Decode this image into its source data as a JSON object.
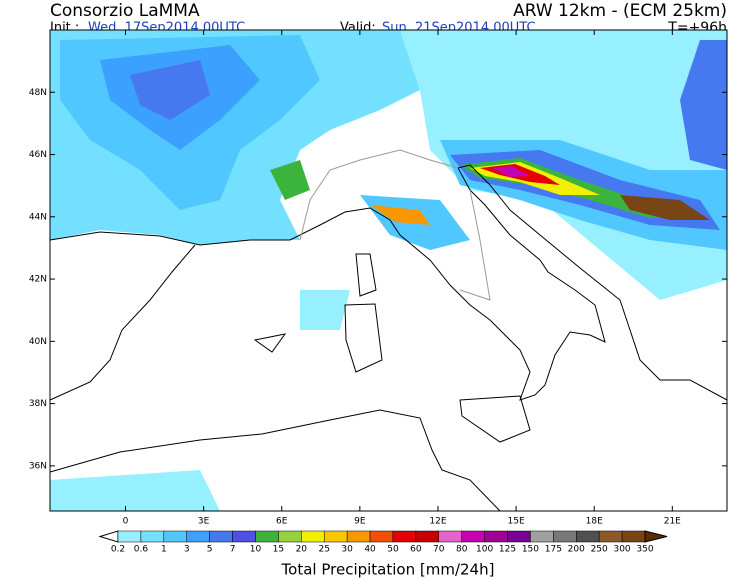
{
  "header": {
    "title": "Consorzio LaMMA",
    "init_label": "Init.:",
    "init_value": "Wed, 17Sep2014 00UTC",
    "valid_label": "Valid:",
    "valid_value": "Sun, 21Sep2014 00UTC",
    "model": "ARW 12km - (ECM 25km)",
    "lead_time": "T=+96h"
  },
  "map": {
    "lon_range": [
      -2.9,
      23.1
    ],
    "lat_range": [
      34.55,
      50
    ],
    "lon_ticks": [
      0,
      {
        "value": 3,
        "label": "3E"
      },
      {
        "value": 6,
        "label": "6E"
      },
      {
        "value": 9,
        "label": "9E"
      },
      {
        "value": 12,
        "label": "12E"
      },
      {
        "value": 15,
        "label": "15E"
      },
      {
        "value": 18,
        "label": "18E"
      },
      {
        "value": 21,
        "label": "21E"
      }
    ],
    "lat_ticks": [
      {
        "value": 36,
        "label": "36N"
      },
      {
        "value": 38,
        "label": "38N"
      },
      {
        "value": 40,
        "label": "40N"
      },
      {
        "value": 42,
        "label": "42N"
      },
      {
        "value": 44,
        "label": "44N"
      },
      {
        "value": 46,
        "label": "46N"
      },
      {
        "value": 48,
        "label": "48N"
      }
    ]
  },
  "colorbar": {
    "levels": [
      0.2,
      0.6,
      1,
      3,
      5,
      7,
      10,
      15,
      20,
      25,
      30,
      40,
      50,
      60,
      70,
      80,
      100,
      125,
      150,
      175,
      200,
      250,
      300,
      350
    ],
    "colors": [
      "#ffffff",
      "#96f0ff",
      "#73e0ff",
      "#50c8ff",
      "#3ca0ff",
      "#4678f0",
      "#5050e6",
      "#3cb43c",
      "#96d23c",
      "#f0f000",
      "#fac800",
      "#fa9600",
      "#f05000",
      "#e60000",
      "#c80000",
      "#e664c8",
      "#c800b4",
      "#a00096",
      "#780096",
      "#a0a0a0",
      "#787878",
      "#505050",
      "#8c5a28",
      "#784614",
      "#5a2d00"
    ],
    "label": "Total Precipitation [mm/24h]"
  }
}
